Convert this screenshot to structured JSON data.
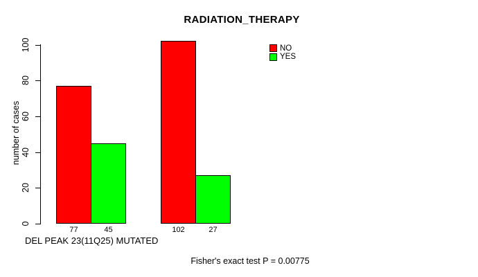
{
  "chart_data": {
    "type": "bar",
    "title": "RADIATION_THERAPY",
    "ylabel": "number of cases",
    "xlabel": "DEL PEAK 23(11Q25) MUTATED",
    "annotation": "Fisher's exact test P = 0.00775",
    "ylim": [
      0,
      100
    ],
    "yticks": [
      0,
      20,
      40,
      60,
      80,
      100
    ],
    "grid": false,
    "legend_position": "top-right",
    "groups": 2,
    "series": [
      {
        "name": "NO",
        "color": "#ff0000",
        "values": [
          77,
          102
        ]
      },
      {
        "name": "YES",
        "color": "#00ff00",
        "values": [
          45,
          27
        ]
      }
    ],
    "bar_value_labels": [
      [
        "77",
        "45"
      ],
      [
        "102",
        "27"
      ]
    ],
    "colors": {
      "background": "#ffffff",
      "axis": "#000000",
      "text": "#000000"
    }
  }
}
